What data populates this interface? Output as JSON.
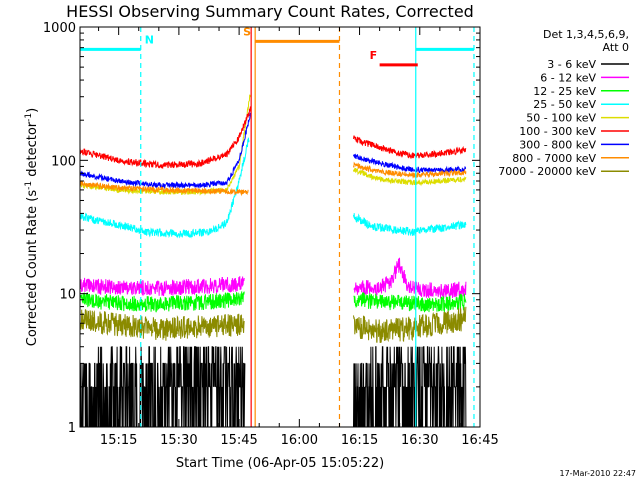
{
  "chart_data": {
    "type": "line",
    "title": "HESSI Observing Summary Count Rates, Corrected",
    "xlabel": "Start Time (06-Apr-05 15:05:22)",
    "ylabel_main": "Corrected Count Rate (s",
    "ylabel_sup1": "-1",
    "ylabel_mid": " detector",
    "ylabel_sup2": "-1",
    "ylabel_end": ")",
    "x_minutes_range": [
      5.37,
      105.0
    ],
    "ylim": [
      1,
      1000
    ],
    "y_scale": "log",
    "x_ticks": [
      {
        "minute": 15,
        "label": "15:15"
      },
      {
        "minute": 30,
        "label": "15:30"
      },
      {
        "minute": 45,
        "label": "15:45"
      },
      {
        "minute": 60,
        "label": "16:00"
      },
      {
        "minute": 75,
        "label": "16:15"
      },
      {
        "minute": 90,
        "label": "16:30"
      },
      {
        "minute": 105,
        "label": "16:45"
      }
    ],
    "y_ticks": [
      {
        "value": 1,
        "label": "1"
      },
      {
        "value": 10,
        "label": "10"
      },
      {
        "value": 100,
        "label": "100"
      },
      {
        "value": 1000,
        "label": "1000"
      }
    ],
    "legend_title": "Det 1,3,4,5,6,9,",
    "legend_subtitle": "Att 0",
    "legend_position": "right",
    "grid": false,
    "series": [
      {
        "name": "3 - 6 keV",
        "color": "#000000",
        "base": 2.3,
        "noise": 0.9,
        "seed": 1,
        "points": [
          [
            5.4,
            1.0
          ],
          [
            8,
            2.0
          ],
          [
            15,
            2.2
          ],
          [
            22,
            2.3
          ],
          [
            30,
            2.4
          ],
          [
            40,
            2.6
          ],
          [
            46.5,
            2.6
          ],
          [
            73.5,
            1.2
          ],
          [
            78,
            2.2
          ],
          [
            85,
            2.4
          ],
          [
            95,
            2.5
          ],
          [
            101.5,
            2.5
          ]
        ]
      },
      {
        "name": "6 - 12 keV",
        "color": "#ff00ff",
        "base": 0,
        "noise": 0.06,
        "seed": 2,
        "points": [
          [
            5.4,
            11.5
          ],
          [
            15,
            11.2
          ],
          [
            25,
            11.0
          ],
          [
            35,
            11.3
          ],
          [
            45,
            11.8
          ],
          [
            46.3,
            12.0
          ],
          [
            73.5,
            11.2
          ],
          [
            80,
            11.0
          ],
          [
            83,
            12.5
          ],
          [
            85,
            17.0
          ],
          [
            87,
            11.0
          ],
          [
            95,
            10.5
          ],
          [
            101.5,
            10.8
          ]
        ]
      },
      {
        "name": "12 - 25 keV",
        "color": "#00ff00",
        "base": 0,
        "noise": 0.06,
        "seed": 3,
        "points": [
          [
            5.4,
            9.0
          ],
          [
            15,
            8.5
          ],
          [
            25,
            8.3
          ],
          [
            35,
            8.6
          ],
          [
            45,
            9.0
          ],
          [
            46.3,
            9.2
          ],
          [
            73.5,
            9.0
          ],
          [
            85,
            8.5
          ],
          [
            95,
            8.2
          ],
          [
            101.5,
            8.8
          ]
        ]
      },
      {
        "name": "25 - 50 keV",
        "color": "#00ffff",
        "base": 0,
        "noise": 0.03,
        "seed": 4,
        "points": [
          [
            5.4,
            38
          ],
          [
            15,
            33
          ],
          [
            22,
            29
          ],
          [
            30,
            28
          ],
          [
            38,
            29
          ],
          [
            42,
            34
          ],
          [
            45,
            70
          ],
          [
            47.5,
            150
          ],
          [
            73.5,
            38
          ],
          [
            78,
            32
          ],
          [
            88,
            29
          ],
          [
            95,
            31
          ],
          [
            101.5,
            33
          ]
        ]
      },
      {
        "name": "50 - 100 keV",
        "color": "#dddd00",
        "base": 0,
        "noise": 0.02,
        "seed": 5,
        "points": [
          [
            5.4,
            65
          ],
          [
            15,
            60
          ],
          [
            25,
            58
          ],
          [
            35,
            58
          ],
          [
            42,
            60
          ],
          [
            45,
            90
          ],
          [
            47.8,
            320
          ],
          [
            73.5,
            85
          ],
          [
            80,
            72
          ],
          [
            88,
            68
          ],
          [
            95,
            70
          ],
          [
            101.5,
            72
          ]
        ]
      },
      {
        "name": "100 - 300 keV",
        "color": "#ff0000",
        "base": 0,
        "noise": 0.025,
        "seed": 6,
        "points": [
          [
            5.4,
            118
          ],
          [
            15,
            100
          ],
          [
            25,
            92
          ],
          [
            35,
            94
          ],
          [
            42,
            110
          ],
          [
            45,
            150
          ],
          [
            47.8,
            240
          ],
          [
            73.5,
            145
          ],
          [
            80,
            125
          ],
          [
            88,
            108
          ],
          [
            95,
            113
          ],
          [
            101.5,
            120
          ]
        ]
      },
      {
        "name": "300 - 800 keV",
        "color": "#0000ff",
        "base": 0,
        "noise": 0.02,
        "seed": 7,
        "points": [
          [
            5.4,
            80
          ],
          [
            15,
            70
          ],
          [
            25,
            65
          ],
          [
            35,
            65
          ],
          [
            42,
            68
          ],
          [
            45,
            100
          ],
          [
            47.8,
            220
          ],
          [
            73.5,
            108
          ],
          [
            80,
            95
          ],
          [
            88,
            85
          ],
          [
            95,
            84
          ],
          [
            101.5,
            86
          ]
        ]
      },
      {
        "name": "800 - 7000 keV",
        "color": "#ff8c00",
        "base": 0,
        "noise": 0.02,
        "seed": 8,
        "points": [
          [
            5.4,
            67
          ],
          [
            15,
            62
          ],
          [
            25,
            60
          ],
          [
            35,
            59
          ],
          [
            45,
            58
          ],
          [
            47.3,
            58
          ],
          [
            73.5,
            92
          ],
          [
            80,
            82
          ],
          [
            88,
            78
          ],
          [
            95,
            79
          ],
          [
            101.5,
            81
          ]
        ]
      },
      {
        "name": "7000 - 20000 keV",
        "color": "#8b8b00",
        "base": 0,
        "noise": 0.09,
        "seed": 9,
        "points": [
          [
            5.4,
            6.5
          ],
          [
            15,
            5.8
          ],
          [
            25,
            5.4
          ],
          [
            35,
            5.6
          ],
          [
            45,
            5.8
          ],
          [
            46.3,
            6.0
          ],
          [
            73.5,
            5.8
          ],
          [
            80,
            5.2
          ],
          [
            88,
            5.5
          ],
          [
            95,
            6.0
          ],
          [
            101.5,
            6.5
          ]
        ]
      }
    ],
    "markers": [
      {
        "label": "N",
        "color": "#00ffff",
        "x_start": 5.4,
        "x_end": 20.5,
        "value": 680,
        "label_minute": 21.5
      },
      {
        "label": "N",
        "color": "#00ffff",
        "x_start": 89.0,
        "x_end": 103.5,
        "value": 680,
        "label_minute": null
      },
      {
        "label": "S",
        "color": "#ff8c00",
        "x_start": 49.0,
        "x_end": 70.0,
        "value": 780,
        "label_minute": 46.0
      },
      {
        "label": "F",
        "color": "#ff0000",
        "x_start": 80.0,
        "x_end": 89.5,
        "value": 520,
        "label_minute": 77.5
      }
    ],
    "vlines": [
      {
        "minute": 20.5,
        "color": "#00ffff",
        "dashed": true
      },
      {
        "minute": 89.0,
        "color": "#00ffff",
        "dashed": false
      },
      {
        "minute": 103.5,
        "color": "#00ffff",
        "dashed": true
      },
      {
        "minute": 49.0,
        "color": "#ff8c00",
        "dashed": false
      },
      {
        "minute": 70.0,
        "color": "#ff8c00",
        "dashed": true
      },
      {
        "minute": 48.0,
        "color": "#ff0000",
        "dashed": false
      }
    ]
  },
  "timestamp": "17-Mar-2010 22:47"
}
